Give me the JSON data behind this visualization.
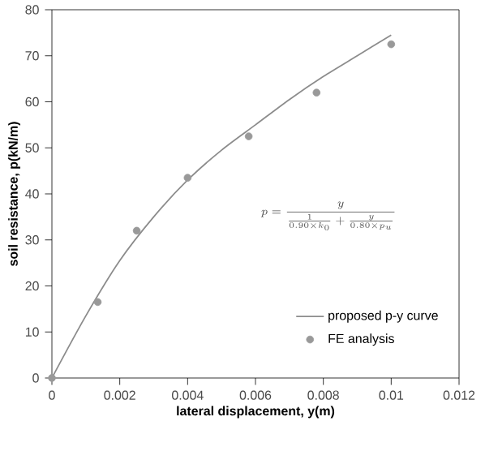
{
  "chart_data": {
    "type": "line",
    "xlabel": "lateral displacement, y(m)",
    "ylabel": "soil resistance, p(kN/m)",
    "xlim": [
      0,
      0.012
    ],
    "ylim": [
      0,
      80
    ],
    "xticks": [
      0,
      0.002,
      0.004,
      0.006,
      0.008,
      0.01,
      0.012
    ],
    "yticks": [
      0,
      10,
      20,
      30,
      40,
      50,
      60,
      70,
      80
    ],
    "series": [
      {
        "name": "proposed p-y curve",
        "color": "#8c8c8c",
        "marker": "none",
        "x": [
          0,
          0.001,
          0.002,
          0.003,
          0.004,
          0.005,
          0.006,
          0.007,
          0.008,
          0.009,
          0.01
        ],
        "values": [
          0,
          13.5,
          25.5,
          35,
          43,
          49.5,
          55,
          60.5,
          65.5,
          70,
          74.5
        ]
      },
      {
        "name": "FE analysis",
        "type": "scatter",
        "color": "#999999",
        "marker": "circle",
        "x": [
          0,
          0.00135,
          0.0025,
          0.004,
          0.0058,
          0.0078,
          0.01
        ],
        "values": [
          0,
          16.5,
          32,
          43.5,
          52.5,
          62,
          72.5
        ]
      }
    ],
    "annotations": [
      "p=\\frac{y}{\\frac{1}{0.90\\times k_0}+\\frac{y}{0.80\\times p_u}}"
    ],
    "legend": "bottom right",
    "grid": false
  }
}
